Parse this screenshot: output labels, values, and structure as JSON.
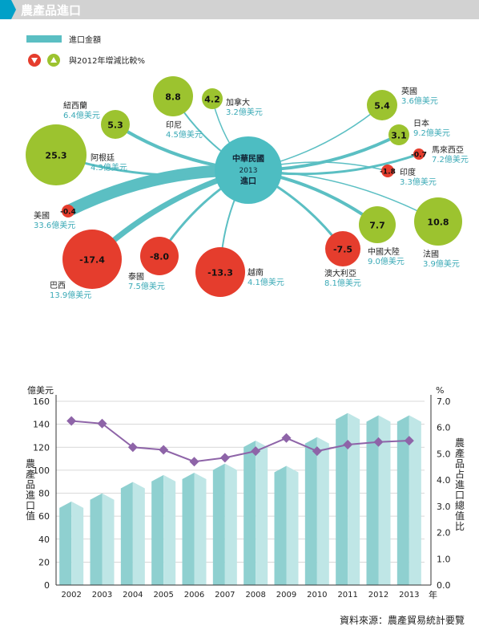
{
  "header": {
    "title": "農產品進口",
    "accent": "#00a0c8",
    "bar_color": "#cfcfcf"
  },
  "legend": {
    "amount_label": "進口金額",
    "change_label": "與2012年增減比較%",
    "amount_color": "#5bbfc3",
    "decrease_color": "#e53d2d",
    "increase_color": "#9cc32f"
  },
  "hub": {
    "line1": "中華民國",
    "line2": "2013",
    "line3": "進口",
    "color": "#4dbdc2"
  },
  "countries": [
    {
      "name": "美國",
      "amount": "33.6億美元",
      "change": -0.4,
      "change_text": "-0.4"
    },
    {
      "name": "巴西",
      "amount": "13.9億美元",
      "change": -17.4,
      "change_text": "-17.4"
    },
    {
      "name": "阿根廷",
      "amount": "4.3億美元",
      "change": 25.3,
      "change_text": "25.3"
    },
    {
      "name": "紐西蘭",
      "amount": "6.4億美元",
      "change": 5.3,
      "change_text": "5.3"
    },
    {
      "name": "印尼",
      "amount": "4.5億美元",
      "change": 8.8,
      "change_text": "8.8"
    },
    {
      "name": "加拿大",
      "amount": "3.2億美元",
      "change": 4.2,
      "change_text": "4.2"
    },
    {
      "name": "泰國",
      "amount": "7.5億美元",
      "change": -8.0,
      "change_text": "-8.0"
    },
    {
      "name": "越南",
      "amount": "4.1億美元",
      "change": -13.3,
      "change_text": "-13.3"
    },
    {
      "name": "英國",
      "amount": "3.6億美元",
      "change": 5.4,
      "change_text": "5.4"
    },
    {
      "name": "日本",
      "amount": "9.2億美元",
      "change": 3.1,
      "change_text": "3.1"
    },
    {
      "name": "馬來西亞",
      "amount": "7.2億美元",
      "change": -0.7,
      "change_text": "-0.7"
    },
    {
      "name": "印度",
      "amount": "3.3億美元",
      "change": -1.8,
      "change_text": "-1.8"
    },
    {
      "name": "中國大陸",
      "amount": "9.0億美元",
      "change": 7.7,
      "change_text": "7.7"
    },
    {
      "name": "澳大利亞",
      "amount": "8.1億美元",
      "change": -7.5,
      "change_text": "-7.5"
    },
    {
      "name": "法國",
      "amount": "3.9億美元",
      "change": 10.8,
      "change_text": "10.8"
    }
  ],
  "chart_data": {
    "type": "bar",
    "categories": [
      "2002",
      "2003",
      "2004",
      "2005",
      "2006",
      "2007",
      "2008",
      "2009",
      "2010",
      "2011",
      "2012",
      "2013"
    ],
    "x_unit": "年",
    "series": [
      {
        "name": "農產品進口值",
        "type": "bar",
        "axis": "left",
        "color": "#a9dcdc",
        "values": [
          70,
          77,
          87,
          93,
          95,
          103,
          123,
          101,
          126,
          147,
          145,
          145
        ]
      },
      {
        "name": "農產品占進口總值比",
        "type": "line",
        "axis": "right",
        "color": "#8e64a8",
        "values": [
          6.25,
          6.15,
          5.25,
          5.15,
          4.7,
          4.85,
          5.1,
          5.6,
          5.1,
          5.35,
          5.45,
          5.5
        ]
      }
    ],
    "left_axis": {
      "unit": "億美元",
      "label": "農產品進口值",
      "ylim": [
        0,
        160
      ],
      "ticks": [
        "0",
        "20",
        "40",
        "60",
        "80",
        "100",
        "120",
        "140",
        "160"
      ]
    },
    "right_axis": {
      "unit": "%",
      "label": "農產品占進口總值比",
      "ylim": [
        0,
        7
      ],
      "ticks": [
        "0.0",
        "1.0",
        "2.0",
        "3.0",
        "4.0",
        "5.0",
        "6.0",
        "7.0"
      ]
    },
    "grid": true
  },
  "source": "資料來源：農產貿易統計要覽"
}
